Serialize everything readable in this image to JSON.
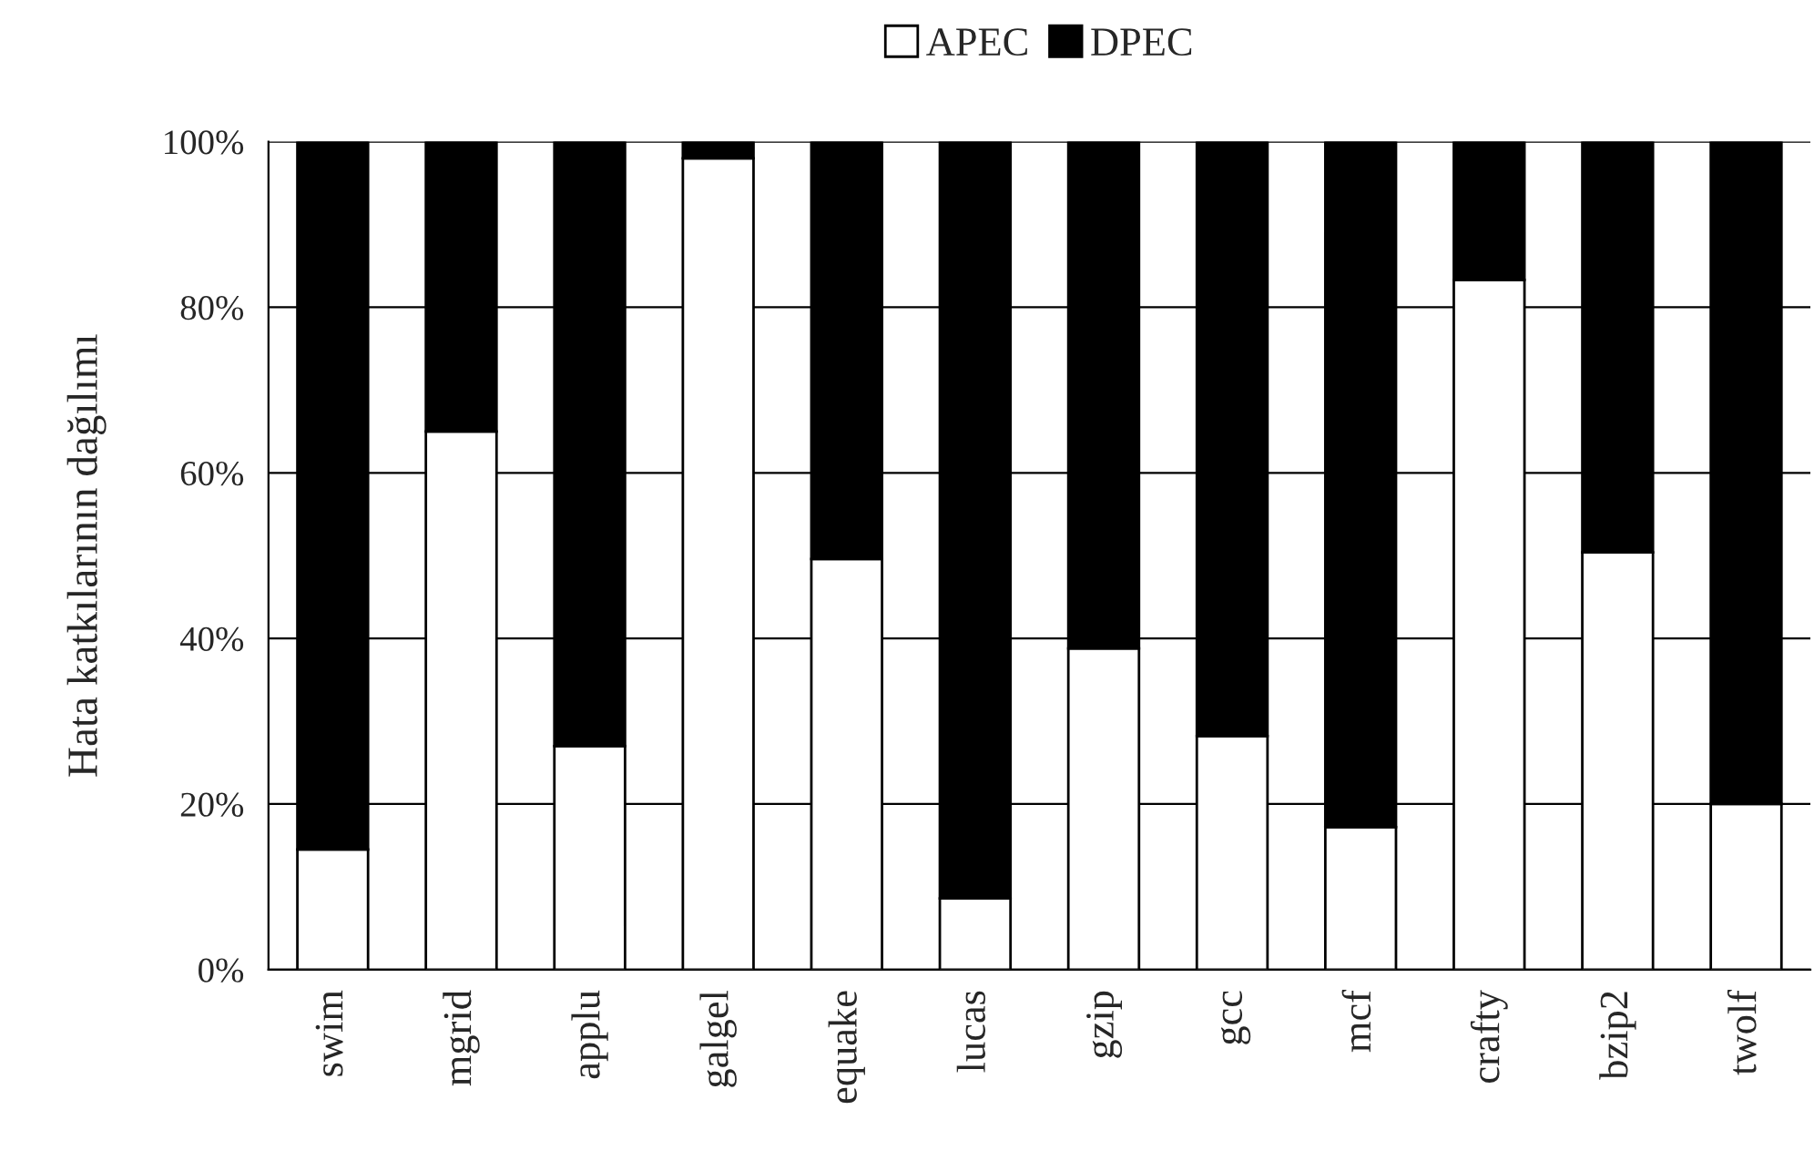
{
  "chart_data": {
    "type": "bar",
    "stacked": true,
    "ylabel": "Hata katkılarının dağılımı",
    "categories": [
      "swim",
      "mgrid",
      "applu",
      "galgel",
      "equake",
      "lucas",
      "gzip",
      "gcc",
      "mcf",
      "crafty",
      "bzip2",
      "twolf"
    ],
    "series": [
      {
        "name": "APEC",
        "color": "#ffffff",
        "values": [
          14.5,
          65,
          27,
          98,
          49.6,
          8.6,
          38.8,
          28.2,
          17.2,
          83.3,
          50.4,
          20
        ]
      },
      {
        "name": "DPEC",
        "color": "#000000",
        "values": [
          85.5,
          35,
          73,
          2,
          50.4,
          91.4,
          61.2,
          71.8,
          82.8,
          16.7,
          49.6,
          80
        ]
      }
    ],
    "ylim": [
      0,
      100
    ],
    "yticks": [
      {
        "value": 0,
        "label": "0%"
      },
      {
        "value": 20,
        "label": "20%"
      },
      {
        "value": 40,
        "label": "40%"
      },
      {
        "value": 60,
        "label": "60%"
      },
      {
        "value": 80,
        "label": "80%"
      },
      {
        "value": 100,
        "label": "100%"
      }
    ],
    "grid": "y",
    "legend": "top"
  }
}
